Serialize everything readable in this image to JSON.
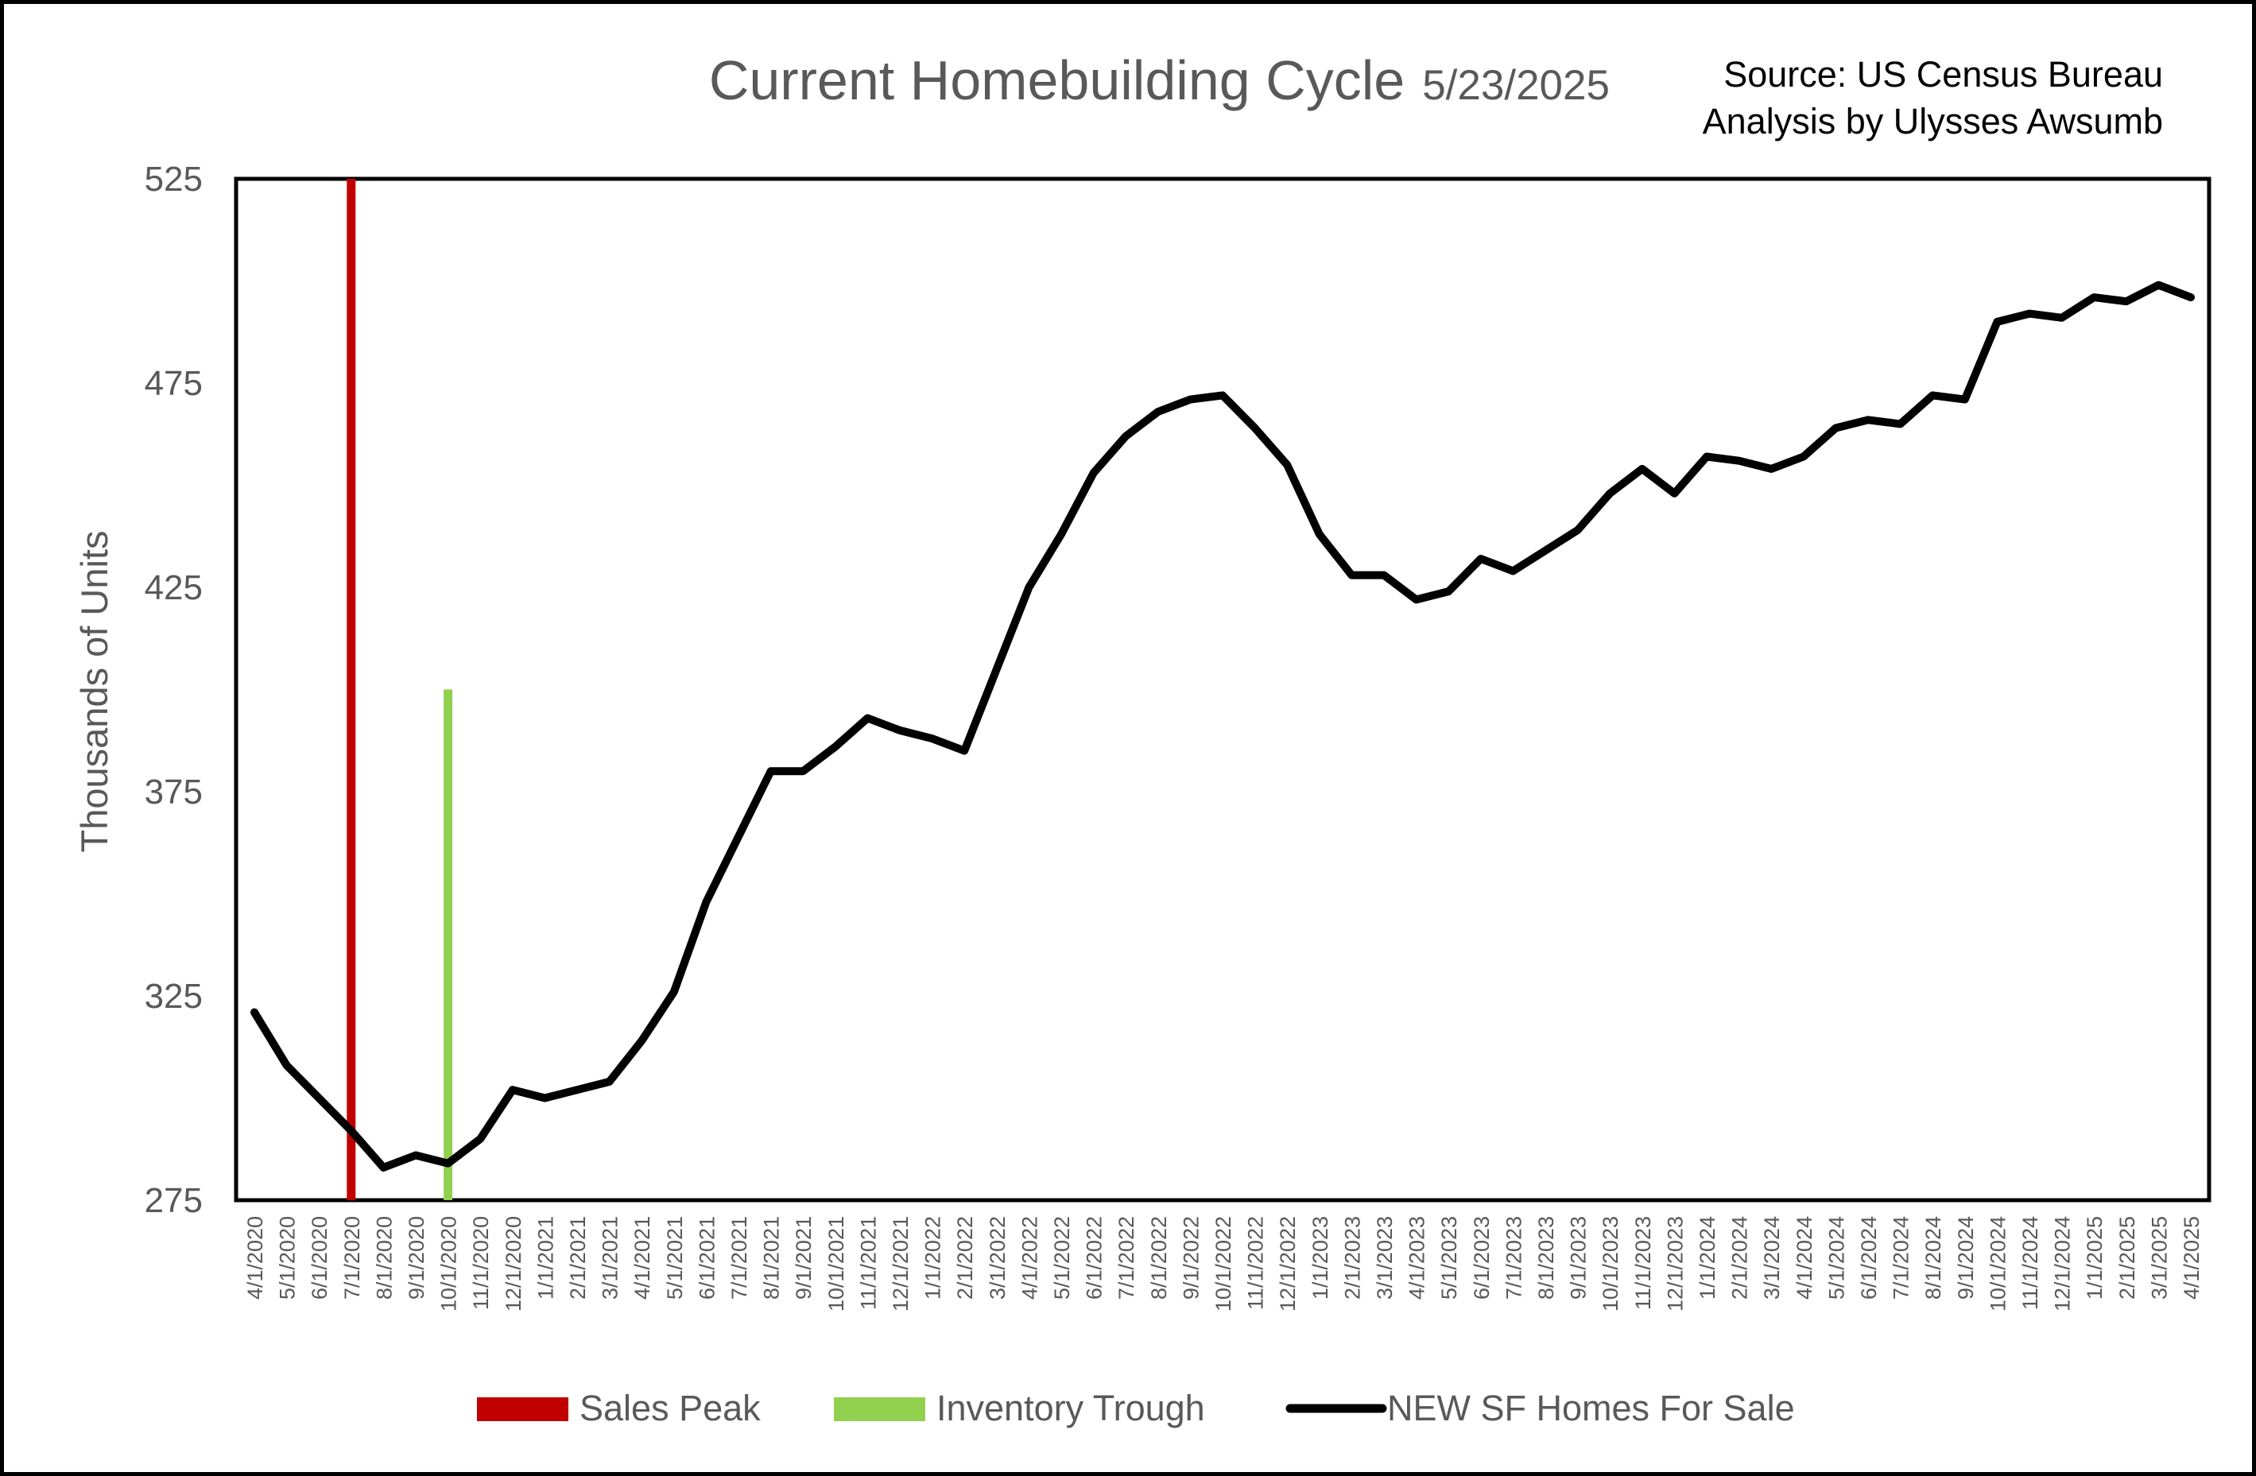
{
  "chart_data": {
    "type": "line",
    "title": "Current Homebuilding Cycle",
    "title_date": "5/23/2025",
    "source_lines": [
      "Source: US Census Bureau",
      "Analysis by Ulysses Awsumb"
    ],
    "xlabel": "",
    "ylabel": "Thousands of Units",
    "ylim": [
      275,
      525
    ],
    "yticks": [
      275,
      325,
      375,
      425,
      475,
      525
    ],
    "grid": false,
    "legend_position": "bottom",
    "categories": [
      "4/1/2020",
      "5/1/2020",
      "6/1/2020",
      "7/1/2020",
      "8/1/2020",
      "9/1/2020",
      "10/1/2020",
      "11/1/2020",
      "12/1/2020",
      "1/1/2021",
      "2/1/2021",
      "3/1/2021",
      "4/1/2021",
      "5/1/2021",
      "6/1/2021",
      "7/1/2021",
      "8/1/2021",
      "9/1/2021",
      "10/1/2021",
      "11/1/2021",
      "12/1/2021",
      "1/1/2022",
      "2/1/2022",
      "3/1/2022",
      "4/1/2022",
      "5/1/2022",
      "6/1/2022",
      "7/1/2022",
      "8/1/2022",
      "9/1/2022",
      "10/1/2022",
      "11/1/2022",
      "12/1/2022",
      "1/1/2023",
      "2/1/2023",
      "3/1/2023",
      "4/1/2023",
      "5/1/2023",
      "6/1/2023",
      "7/1/2023",
      "8/1/2023",
      "9/1/2023",
      "10/1/2023",
      "11/1/2023",
      "12/1/2023",
      "1/1/2024",
      "2/1/2024",
      "3/1/2024",
      "4/1/2024",
      "5/1/2024",
      "6/1/2024",
      "7/1/2024",
      "8/1/2024",
      "9/1/2024",
      "10/1/2024",
      "11/1/2024",
      "12/1/2024",
      "1/1/2025",
      "2/1/2025",
      "3/1/2025",
      "4/1/2025"
    ],
    "series": [
      {
        "name": "NEW SF Homes For Sale",
        "color": "#000000",
        "values": [
          321,
          308,
          300,
          292,
          283,
          286,
          284,
          290,
          302,
          300,
          302,
          304,
          314,
          326,
          348,
          364,
          380,
          380,
          386,
          393,
          390,
          388,
          385,
          405,
          425,
          438,
          453,
          462,
          468,
          471,
          472,
          464,
          455,
          438,
          428,
          428,
          422,
          424,
          432,
          429,
          434,
          439,
          448,
          454,
          448,
          457,
          456,
          454,
          457,
          464,
          466,
          465,
          472,
          471,
          490,
          492,
          491,
          496,
          495,
          499,
          496
        ]
      }
    ],
    "markers": [
      {
        "name": "Sales Peak",
        "color": "#C00000",
        "category": "7/1/2020",
        "y_top": 525
      },
      {
        "name": "Inventory Trough",
        "color": "#92D050",
        "category": "10/1/2020",
        "y_top": 400
      }
    ]
  }
}
